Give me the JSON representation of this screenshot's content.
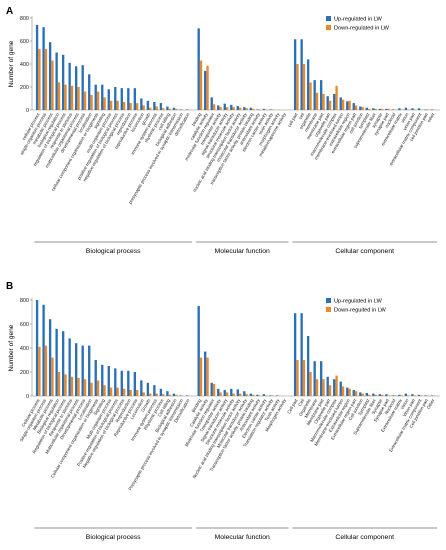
{
  "colors": {
    "up": "#2b6fb5",
    "down": "#e98a2a",
    "axis": "#8c8c8c"
  },
  "chart_data": [
    {
      "panel": "A",
      "type": "bar",
      "ylabel": "Number of gene",
      "ylim": [
        0,
        800
      ],
      "yticks": [
        0,
        200,
        400,
        600,
        800
      ],
      "legend": {
        "position": "top-right",
        "up": "Up-regulated in LW",
        "down": "Down-regulated in LW"
      },
      "groups": [
        {
          "label": "Biological process",
          "start": 0,
          "end": 23
        },
        {
          "label": "Molecular function",
          "start": 24,
          "end": 37
        },
        {
          "label": "Cellular component",
          "start": 38,
          "end": 59
        }
      ],
      "categories": [
        "cellular process",
        "single-organism process",
        "metabolic process",
        "biological regulation",
        "regulation of biological process",
        "response to stimulus",
        "multicellular organismal process",
        "developmental process",
        "localization",
        "cellular component organization or biogenesis",
        "signaling",
        "multi-organism process",
        "positive regulation of biological process",
        "negative regulation of biological process",
        "reproduction",
        "reproductive process",
        "locomotion",
        "growth",
        "immune system process",
        "rhythmic process",
        "cell killing",
        "biological adhesion",
        "presynaptic process involved in synaptic transmission",
        "detoxification",
        "binding",
        "catalytic activity",
        "molecular function regulator",
        "transporter activity",
        "signal transducer activity",
        "structural molecule activity",
        "nucleic acid binding transcription factor activity",
        "molecular transducer activity",
        "transcription factor activity, protein binding",
        "antioxidant activity",
        "electron carrier activity",
        "toxin activity",
        "morphogen activity",
        "metallochaperone activity",
        "cell part",
        "cell",
        "organelle",
        "membrane",
        "membrane part",
        "organelle part",
        "macromolecular complex",
        "membrane-enclosed lumen",
        "extracellular region",
        "extracellular region part",
        "cell junction",
        "symplast",
        "supramolecular fiber",
        "synapse",
        "synapse part",
        "nucleoid",
        "extracellular matrix",
        "virion",
        "virion part",
        "extracellular matrix component",
        "cell junction part",
        "other"
      ],
      "series": [
        {
          "name": "Up-regulated in LW",
          "values": [
            740,
            720,
            590,
            500,
            480,
            410,
            380,
            390,
            310,
            220,
            220,
            180,
            200,
            190,
            190,
            190,
            100,
            80,
            70,
            60,
            30,
            20,
            5,
            5,
            710,
            340,
            110,
            40,
            55,
            45,
            35,
            25,
            20,
            5,
            10,
            5,
            0,
            0,
            615,
            615,
            440,
            260,
            260,
            120,
            140,
            110,
            75,
            60,
            30,
            20,
            15,
            10,
            10,
            5,
            15,
            20,
            15,
            15,
            5,
            5
          ]
        },
        {
          "name": "Down-regulated in LW",
          "values": [
            530,
            530,
            430,
            240,
            220,
            210,
            200,
            160,
            130,
            160,
            110,
            80,
            80,
            70,
            60,
            60,
            40,
            20,
            30,
            15,
            10,
            10,
            2,
            2,
            430,
            385,
            50,
            25,
            25,
            25,
            20,
            15,
            10,
            5,
            5,
            5,
            3,
            0,
            400,
            400,
            240,
            150,
            140,
            80,
            210,
            90,
            80,
            40,
            25,
            10,
            10,
            10,
            10,
            5,
            5,
            5,
            5,
            5,
            5,
            3
          ]
        }
      ]
    },
    {
      "panel": "B",
      "type": "bar",
      "ylabel": "Number of gene",
      "ylim": [
        0,
        800
      ],
      "yticks": [
        0,
        200,
        400,
        600,
        800
      ],
      "legend": {
        "position": "top-right",
        "up": "Up-regulated in LW",
        "down": "Down-reguited in LW"
      },
      "groups": [
        {
          "label": "Biological process",
          "start": 0,
          "end": 23
        },
        {
          "label": "Molecular function",
          "start": 24,
          "end": 37
        },
        {
          "label": "Cellular component",
          "start": 38,
          "end": 59
        }
      ],
      "categories": [
        "Cellular process",
        "Single-organism process",
        "Metabolic process",
        "Biological regulation",
        "Regulation of biological process",
        "Response to stimulus",
        "Multicellular organismal process",
        "Developmental process",
        "Localization",
        "Cellular component organization or biogenesis",
        "Signaling",
        "Multi-organism process",
        "Positive regulation of biological process",
        "Negative regulation of biological process",
        "Reproduction",
        "Reproductive process",
        "Locomotion",
        "Growth",
        "Immune system process",
        "Rhythmic process",
        "Cell killing",
        "Biological adhesion",
        "Presynaptic process involved in synaptic transmission",
        "Detoxification",
        "Binding",
        "Catalytic activity",
        "Molecular function regulator",
        "Transporter activity",
        "Signal transducer activity",
        "Structural molecule activity",
        "Nucleic acid binding transcription factor activity",
        "Molecular transducer activity",
        "Transcription factor activity, protein binding",
        "Antioxidant activity",
        "Electron carrier activity",
        "Translation regulator activity",
        "Toxin activity",
        "Morphogen activity",
        "Cell part",
        "Cell",
        "Organelle",
        "Membrane",
        "Membrane part",
        "Organelle part",
        "Macromolecular complex",
        "Membrane-enclosed lumen",
        "Extracellular region",
        "Extracellular region part",
        "Cell junction",
        "Symplast",
        "Supramolecular fiber",
        "Synapse",
        "Synapse part",
        "Nucleoid",
        "Extracellular matrix",
        "Virion",
        "Virion part",
        "Extracellular matrix component",
        "Cell junction part",
        "Other"
      ],
      "series": [
        {
          "name": "Up-regulated in LW",
          "values": [
            800,
            760,
            640,
            560,
            540,
            480,
            440,
            420,
            420,
            300,
            260,
            250,
            230,
            210,
            210,
            200,
            130,
            110,
            90,
            60,
            40,
            20,
            5,
            5,
            750,
            370,
            110,
            60,
            50,
            60,
            55,
            40,
            20,
            10,
            15,
            5,
            5,
            0,
            690,
            690,
            500,
            290,
            290,
            160,
            140,
            120,
            70,
            50,
            30,
            25,
            20,
            15,
            15,
            5,
            10,
            20,
            15,
            10,
            5,
            5
          ]
        },
        {
          "name": "Down-regulated in LW",
          "values": [
            410,
            420,
            320,
            200,
            180,
            160,
            150,
            140,
            110,
            130,
            90,
            70,
            70,
            60,
            50,
            50,
            30,
            20,
            20,
            15,
            10,
            10,
            2,
            2,
            320,
            320,
            100,
            30,
            30,
            20,
            20,
            15,
            10,
            5,
            5,
            5,
            3,
            0,
            300,
            300,
            200,
            140,
            140,
            90,
            170,
            80,
            60,
            40,
            20,
            10,
            10,
            10,
            5,
            5,
            5,
            5,
            5,
            5,
            5,
            3
          ]
        }
      ]
    }
  ]
}
